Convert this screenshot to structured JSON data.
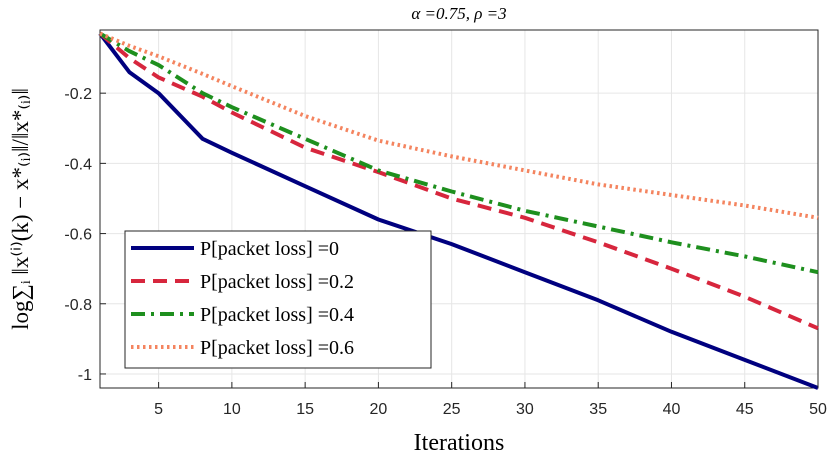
{
  "chart_data": {
    "type": "line",
    "title": "α =0.75, ρ =3",
    "xlabel": "Iterations",
    "ylabel": "log∑ᵢ ‖x⁽ⁱ⁾(k) − x*₍ᵢ₎‖/‖x*₍ᵢ₎‖",
    "xlim": [
      1,
      50
    ],
    "ylim": [
      -1.04,
      -0.02
    ],
    "xticks": [
      5,
      10,
      15,
      20,
      25,
      30,
      35,
      40,
      45,
      50
    ],
    "yticks": [
      -1,
      -0.8,
      -0.6,
      -0.4,
      -0.2
    ],
    "ytick_labels": [
      "-1",
      "-0.8",
      "-0.6",
      "-0.4",
      "-0.2"
    ],
    "grid": true,
    "legend_position": "bottom-left",
    "x": [
      1,
      3,
      5,
      8,
      10,
      15,
      20,
      25,
      30,
      35,
      40,
      45,
      50
    ],
    "series": [
      {
        "name": "P[packet loss] =0",
        "color": "#00007f",
        "dash": "solid",
        "values": [
          -0.03,
          -0.14,
          -0.2,
          -0.33,
          -0.37,
          -0.465,
          -0.56,
          -0.63,
          -0.71,
          -0.79,
          -0.88,
          -0.96,
          -1.04
        ]
      },
      {
        "name": "P[packet loss] =0.2",
        "color": "#d7263d",
        "dash": "dashed",
        "values": [
          -0.03,
          -0.1,
          -0.155,
          -0.21,
          -0.255,
          -0.355,
          -0.425,
          -0.5,
          -0.555,
          -0.625,
          -0.7,
          -0.78,
          -0.87
        ]
      },
      {
        "name": "P[packet loss] =0.4",
        "color": "#1e8f1e",
        "dash": "dashdot",
        "values": [
          -0.03,
          -0.08,
          -0.12,
          -0.2,
          -0.24,
          -0.33,
          -0.42,
          -0.48,
          -0.535,
          -0.58,
          -0.625,
          -0.665,
          -0.71
        ]
      },
      {
        "name": "P[packet loss] =0.6",
        "color": "#f4845f",
        "dash": "dotted",
        "values": [
          -0.03,
          -0.065,
          -0.095,
          -0.145,
          -0.18,
          -0.265,
          -0.335,
          -0.38,
          -0.42,
          -0.46,
          -0.49,
          -0.52,
          -0.555
        ]
      }
    ]
  }
}
